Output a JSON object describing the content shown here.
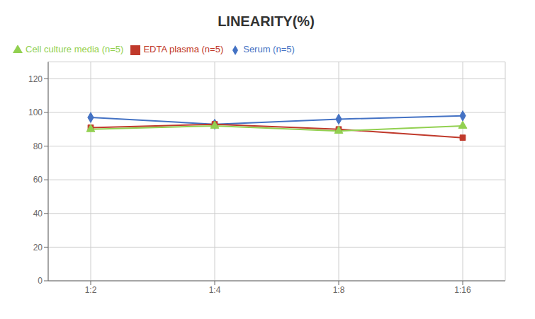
{
  "chart_data": {
    "type": "line",
    "title": "LINEARITY(%)",
    "categories": [
      "1:2",
      "1:4",
      "1:8",
      "1:16"
    ],
    "series": [
      {
        "name": "Serum (n=5)",
        "color": "#4472C4",
        "marker": "diamond",
        "values": [
          97,
          93,
          96,
          98
        ]
      },
      {
        "name": "EDTA plasma (n=5)",
        "color": "#C0392B",
        "marker": "square",
        "values": [
          91,
          93,
          90,
          85
        ]
      },
      {
        "name": "Cell culture media (n=5)",
        "color": "#92D050",
        "marker": "triangle",
        "values": [
          90,
          92,
          89,
          92
        ]
      }
    ],
    "ylim": [
      0,
      130
    ],
    "yticks": [
      0,
      20,
      40,
      60,
      80,
      100,
      120
    ],
    "grid": true,
    "legend": "upper left"
  }
}
